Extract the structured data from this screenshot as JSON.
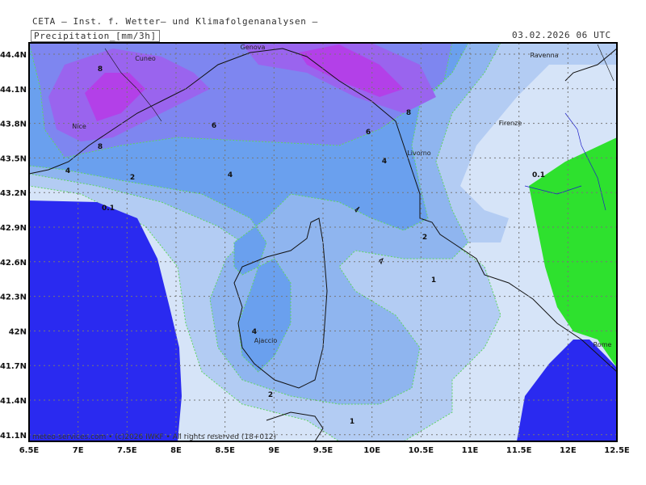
{
  "header": {
    "organization": "CETA — Inst. f. Wetter— und Klimafolgenanalysen —",
    "variable": "Precipitation_[mm/3h]",
    "datetime": "03.02.2026 06 UTC"
  },
  "footer": "meteo-services.com • (c)2026 IWKF • All rights reserved (18+012)",
  "axes": {
    "x_ticks": [
      "6.5E",
      "7E",
      "7.5E",
      "8E",
      "8.5E",
      "9E",
      "9.5E",
      "10E",
      "10.5E",
      "11E",
      "11.5E",
      "12E",
      "12.5E"
    ],
    "y_ticks": [
      "44.4N",
      "44.1N",
      "43.8N",
      "43.5N",
      "43.2N",
      "42.9N",
      "42.6N",
      "42.3N",
      "42N",
      "41.7N",
      "41.4N",
      "41.1N"
    ]
  },
  "cities": [
    "Genova",
    "Cuneo",
    "Ravenna",
    "Nice",
    "Firenze",
    "Livorno",
    "Ajaccio",
    "Rome"
  ],
  "contour_labels": [
    "8",
    "8",
    "8",
    "6",
    "6",
    "4",
    "4",
    "4",
    "2",
    "2",
    "2",
    "1",
    "1",
    "0.1",
    "0.1",
    "4"
  ],
  "legend_colors": {
    "0": "#2a2af0",
    "0.1": "#d6e4f8",
    "1": "#b3ccf3",
    "2": "#8fb5ef",
    "4": "#6aa0ee",
    "6": "#7e86f0",
    "8": "#9a64ee",
    "10": "#b340e8",
    "land_zero": "#2ee12e"
  }
}
